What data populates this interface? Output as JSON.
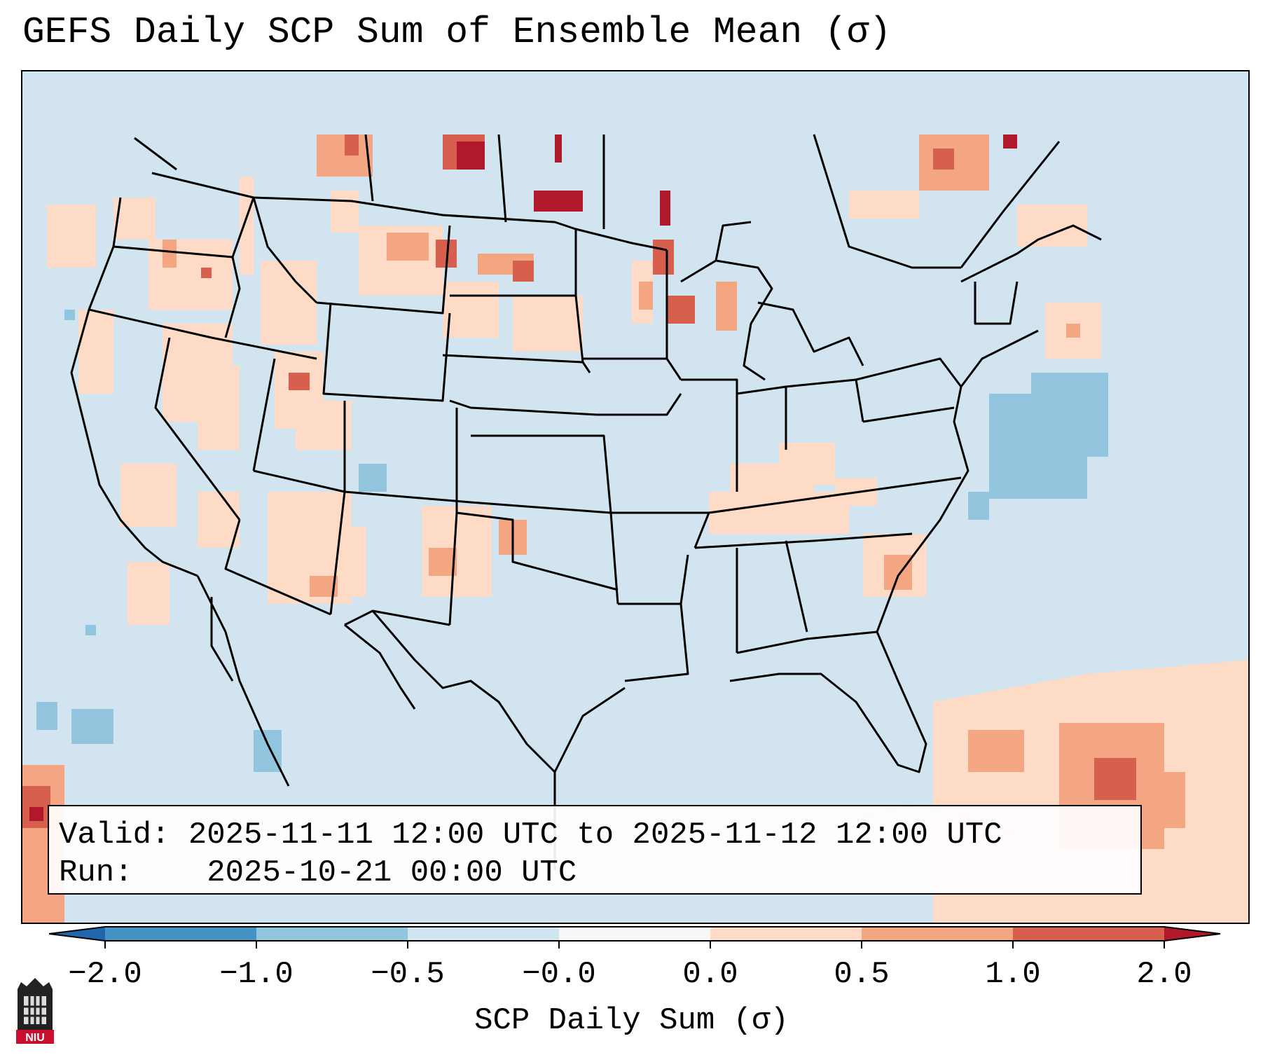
{
  "title": "GEFS Daily SCP Sum of Ensemble Mean (σ)",
  "info": {
    "valid_label": "Valid:",
    "valid_value": "2025-11-11 12:00 UTC to 2025-11-12 12:00 UTC",
    "run_label": "Run:",
    "run_value": "2025-10-21 00:00 UTC"
  },
  "colorbar": {
    "label": "SCP Daily Sum (σ)",
    "ticks": [
      "−2.0",
      "−1.0",
      "−0.5",
      "−0.0",
      "0.0",
      "0.5",
      "1.0",
      "2.0"
    ],
    "colors": {
      "extend_low": "#2166ac",
      "neg_2_to_1": "#4393c3",
      "neg_1_to_05": "#92c5de",
      "neg_05_to_0": "#d1e5f0",
      "zero_band": "#f7f7f7",
      "pos_0_to_05": "#fddbc7",
      "pos_05_to_1": "#f4a582",
      "pos_1_to_2": "#d6604d",
      "extend_high": "#b2182b"
    }
  },
  "map": {
    "background_color": "#d1e5f0",
    "features": [
      "state-borders",
      "coastlines",
      "international-borders"
    ]
  },
  "logo": {
    "text": "NIU",
    "color": "#c8102e"
  }
}
